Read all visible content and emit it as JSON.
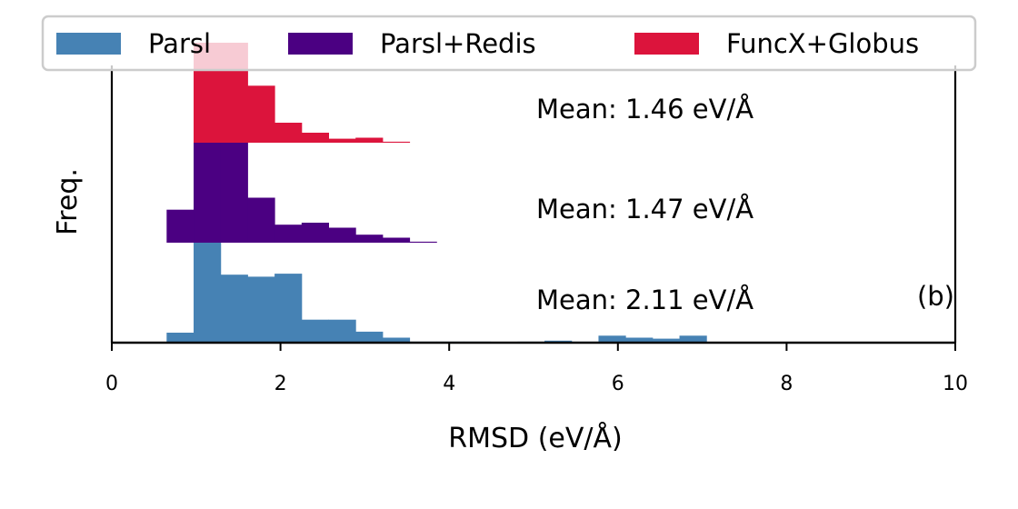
{
  "chart_data": {
    "type": "histogram",
    "panel_label": "(b)",
    "xlabel": "RMSD (eV/Å)",
    "ylabel": "Freq.",
    "xlim": [
      0,
      10
    ],
    "x_ticks": [
      "0",
      "2",
      "4",
      "6",
      "8",
      "10"
    ],
    "y_ticks_shown": false,
    "grid": false,
    "legend_position": "top",
    "bin_width": 0.32,
    "series": [
      {
        "name": "Parsl",
        "color": "#4682b4",
        "mean_label": "Mean: 2.11 eV/Å",
        "bins": [
          {
            "start": 0.65,
            "height": 0.1
          },
          {
            "start": 0.97,
            "height": 1.0
          },
          {
            "start": 1.29,
            "height": 0.68
          },
          {
            "start": 1.61,
            "height": 0.66
          },
          {
            "start": 1.93,
            "height": 0.69
          },
          {
            "start": 2.25,
            "height": 0.23
          },
          {
            "start": 2.57,
            "height": 0.23
          },
          {
            "start": 2.89,
            "height": 0.11
          },
          {
            "start": 3.21,
            "height": 0.05
          },
          {
            "start": 3.53,
            "height": 0.01
          },
          {
            "start": 3.85,
            "height": 0.01
          },
          {
            "start": 4.17,
            "height": 0.01
          },
          {
            "start": 4.49,
            "height": 0.0
          },
          {
            "start": 4.81,
            "height": 0.01
          },
          {
            "start": 5.13,
            "height": 0.02
          },
          {
            "start": 5.45,
            "height": 0.01
          },
          {
            "start": 5.77,
            "height": 0.07
          },
          {
            "start": 6.09,
            "height": 0.05
          },
          {
            "start": 6.41,
            "height": 0.04
          },
          {
            "start": 6.73,
            "height": 0.07
          }
        ]
      },
      {
        "name": "Parsl+Redis",
        "color": "#4b0082",
        "mean_label": "Mean: 1.47 eV/Å",
        "bins": [
          {
            "start": 0.65,
            "height": 0.33
          },
          {
            "start": 0.97,
            "height": 1.0
          },
          {
            "start": 1.29,
            "height": 1.0
          },
          {
            "start": 1.61,
            "height": 0.45
          },
          {
            "start": 1.93,
            "height": 0.18
          },
          {
            "start": 2.25,
            "height": 0.2
          },
          {
            "start": 2.57,
            "height": 0.15
          },
          {
            "start": 2.89,
            "height": 0.08
          },
          {
            "start": 3.21,
            "height": 0.05
          },
          {
            "start": 3.53,
            "height": 0.01
          }
        ]
      },
      {
        "name": "FuncX+Globus",
        "color": "#dc143c",
        "mean_label": "Mean: 1.46 eV/Å",
        "bins": [
          {
            "start": 0.97,
            "height": 1.0
          },
          {
            "start": 1.29,
            "height": 1.0
          },
          {
            "start": 1.61,
            "height": 0.57
          },
          {
            "start": 1.93,
            "height": 0.2
          },
          {
            "start": 2.25,
            "height": 0.1
          },
          {
            "start": 2.57,
            "height": 0.04
          },
          {
            "start": 2.89,
            "height": 0.05
          },
          {
            "start": 3.21,
            "height": 0.01
          }
        ]
      }
    ]
  }
}
